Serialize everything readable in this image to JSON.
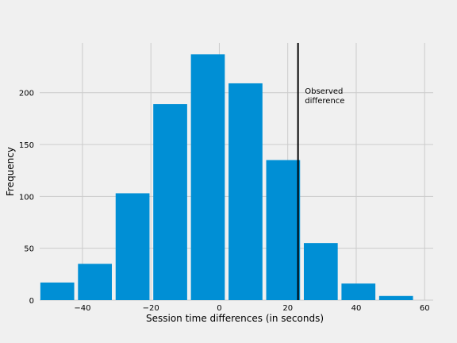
{
  "chart_data": {
    "type": "bar",
    "title": "",
    "xlabel": "Session time differences (in seconds)",
    "ylabel": "Frequency",
    "xlim": [
      -52.5,
      62.5
    ],
    "ylim": [
      0,
      248
    ],
    "grid": true,
    "bar_color": "#008fd5",
    "background_color": "#f0f0f0",
    "grid_color": "#cbcbcb",
    "bin_edges": [
      -52.3,
      -41.3,
      -30.3,
      -19.3,
      -8.3,
      2.7,
      13.7,
      24.7,
      35.7,
      46.7,
      57.7
    ],
    "bar_width_fraction": 0.9,
    "values": [
      17,
      35,
      103,
      189,
      237,
      209,
      135,
      55,
      16,
      4
    ],
    "x_ticks": [
      -40,
      -20,
      0,
      20,
      40,
      60
    ],
    "x_tick_labels": [
      "−40",
      "−20",
      "0",
      "20",
      "40",
      "60"
    ],
    "y_ticks": [
      0,
      50,
      100,
      150,
      200
    ],
    "y_tick_labels": [
      "0",
      "50",
      "100",
      "150",
      "200"
    ],
    "observed_difference": 23.0,
    "annotation": {
      "lines": [
        "Observed",
        "difference"
      ],
      "x": 25.0,
      "y": 199
    }
  }
}
